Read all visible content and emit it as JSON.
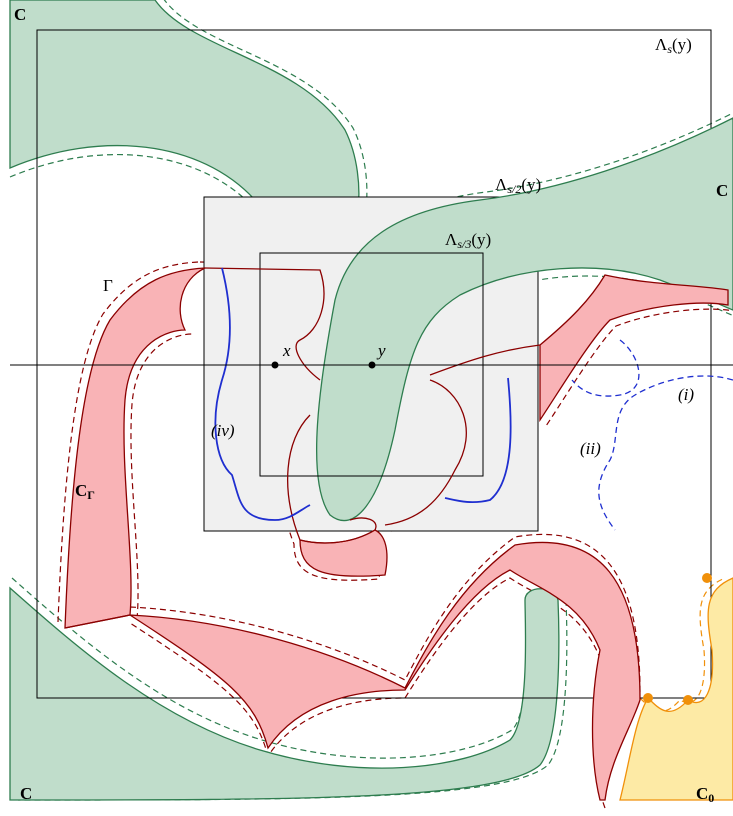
{
  "labels": {
    "c_top_left": "C",
    "c_right": "C",
    "c_bottom_left": "C",
    "lambda_s": {
      "base": "Λ",
      "sub": "s",
      "rest": "(y)"
    },
    "lambda_s2": {
      "base": "Λ",
      "sub": "s/2",
      "rest": "(y)"
    },
    "lambda_s3": {
      "base": "Λ",
      "sub": "s/3",
      "rest": "(y)"
    },
    "gamma": "Γ",
    "x": "x",
    "y": "y",
    "iv": "(iv)",
    "i": "(i)",
    "ii": "(ii)",
    "c_gamma": {
      "base": "C",
      "sub": "Γ"
    },
    "c_zero": {
      "base": "C",
      "sub": "0"
    }
  }
}
